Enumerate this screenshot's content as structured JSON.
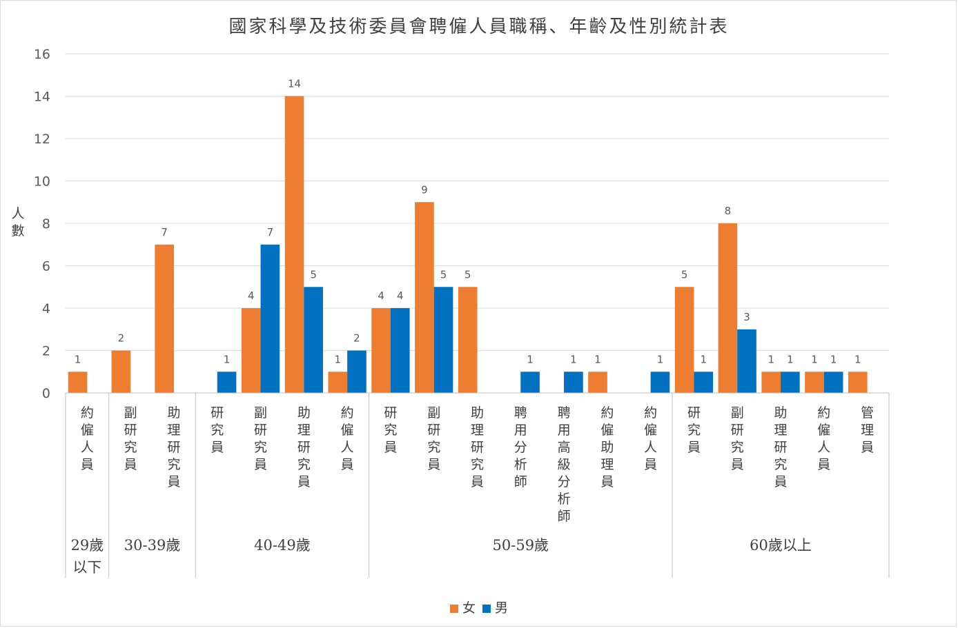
{
  "chart_data": {
    "type": "bar",
    "title": "國家科學及技術委員會聘僱人員職稱、年齡及性別統計表",
    "ylabel": "人數",
    "ylim": [
      0,
      16
    ],
    "yticks": [
      0,
      2,
      4,
      6,
      8,
      10,
      12,
      14,
      16
    ],
    "grid": true,
    "legend_position": "bottom",
    "groups": [
      {
        "label": "29歲以下",
        "categories": [
          "約僱人員"
        ]
      },
      {
        "label": "30-39歲",
        "categories": [
          "副研究員",
          "助理研究員"
        ]
      },
      {
        "label": "40-49歲",
        "categories": [
          "研究員",
          "副研究員",
          "助理研究員",
          "約僱人員"
        ]
      },
      {
        "label": "50-59歲",
        "categories": [
          "研究員",
          "副研究員",
          "助理研究員",
          "聘用分析師",
          "聘用高級分析師",
          "約僱助理員",
          "約僱人員"
        ]
      },
      {
        "label": "60歲以上",
        "categories": [
          "研究員",
          "副研究員",
          "助理研究員",
          "約僱人員",
          "管理員"
        ]
      }
    ],
    "series": [
      {
        "name": "女",
        "color": "#ED7D31",
        "values": [
          1,
          2,
          7,
          null,
          4,
          14,
          1,
          4,
          9,
          5,
          null,
          null,
          1,
          null,
          5,
          8,
          1,
          1,
          1
        ]
      },
      {
        "name": "男",
        "color": "#0070C0",
        "values": [
          null,
          null,
          null,
          1,
          7,
          5,
          2,
          4,
          5,
          null,
          1,
          1,
          null,
          1,
          1,
          3,
          1,
          1,
          null
        ]
      }
    ]
  }
}
